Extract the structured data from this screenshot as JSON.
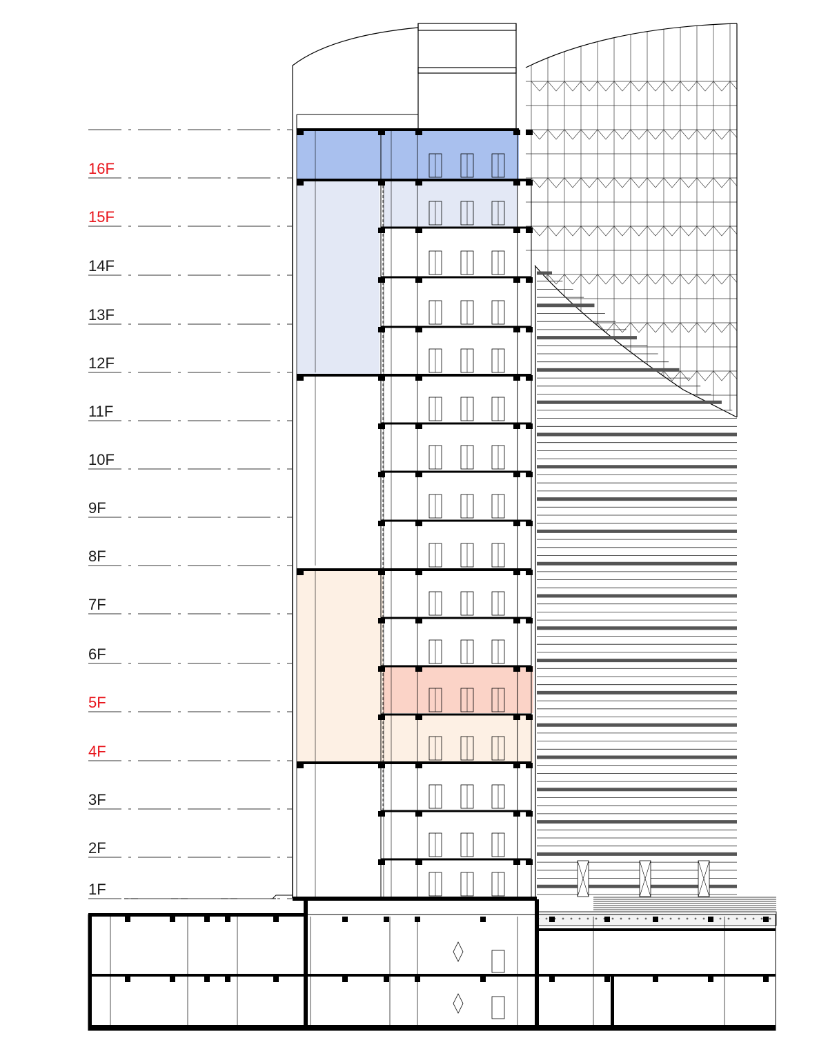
{
  "floors": [
    {
      "label": "16F",
      "highlight": true
    },
    {
      "label": "15F",
      "highlight": true
    },
    {
      "label": "14F",
      "highlight": false
    },
    {
      "label": "13F",
      "highlight": false
    },
    {
      "label": "12F",
      "highlight": false
    },
    {
      "label": "11F",
      "highlight": false
    },
    {
      "label": "10F",
      "highlight": false
    },
    {
      "label": "9F",
      "highlight": false
    },
    {
      "label": "8F",
      "highlight": false
    },
    {
      "label": "7F",
      "highlight": false
    },
    {
      "label": "6F",
      "highlight": false
    },
    {
      "label": "5F",
      "highlight": true
    },
    {
      "label": "4F",
      "highlight": true
    },
    {
      "label": "3F",
      "highlight": false
    },
    {
      "label": "2F",
      "highlight": false
    },
    {
      "label": "1F",
      "highlight": false
    }
  ],
  "colors": {
    "label_default": "#1a1a1a",
    "label_highlight": "#e8141b",
    "zone_blue_strong": "#a9c0ee",
    "zone_blue_light": "#e3e8f5",
    "zone_orange_strong": "#fbd3c7",
    "zone_orange_light": "#fdf0e4",
    "line": "#000000"
  }
}
